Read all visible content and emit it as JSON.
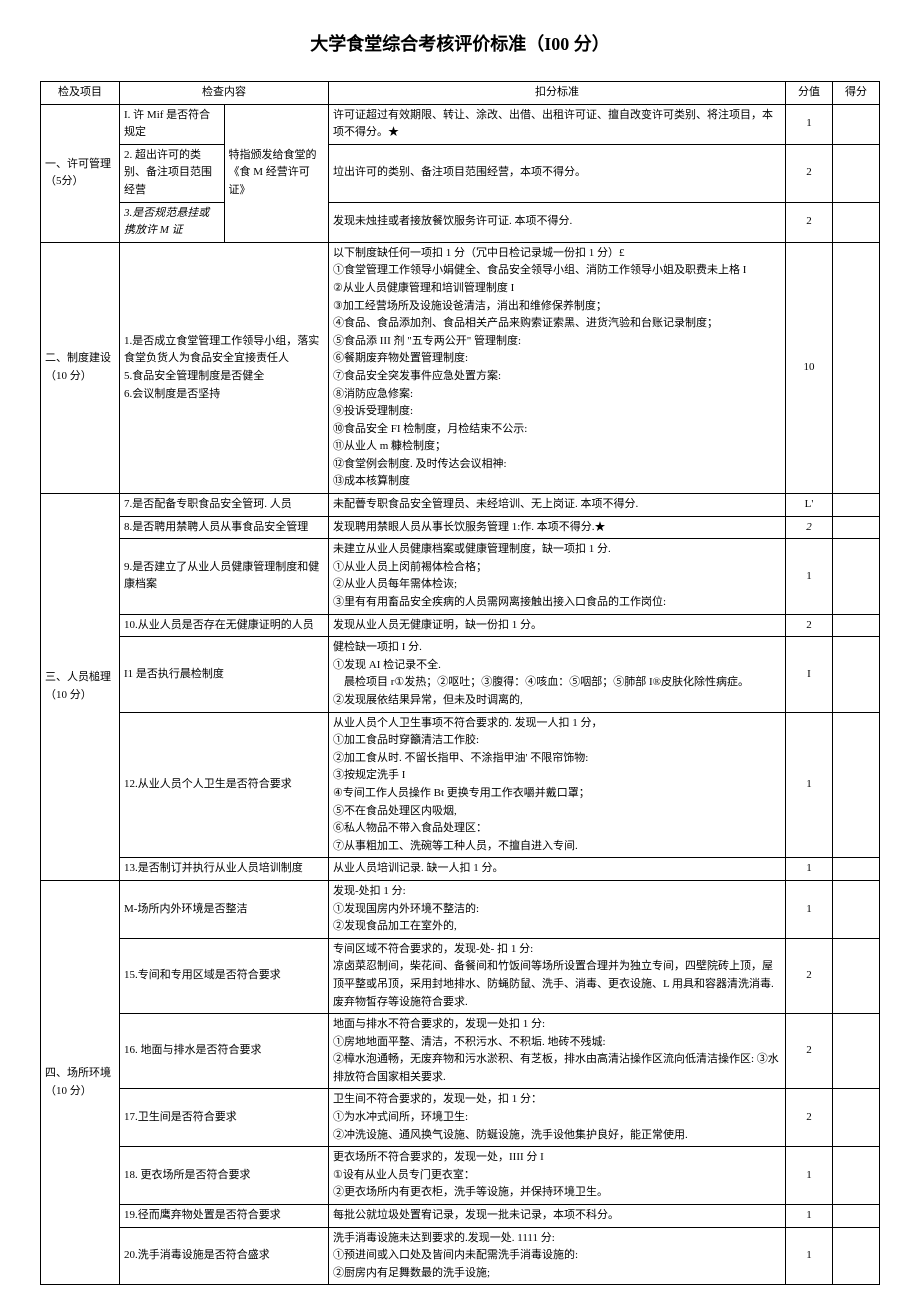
{
  "title": "大学食堂综合考核评价标准（I00 分）",
  "headers": {
    "project": "检及项目",
    "content": "检查内容",
    "criteria": "扣分标准",
    "score": "分值",
    "result": "得分"
  },
  "sections": [
    {
      "project": "一、许可管理（5分）",
      "rows": [
        {
          "content": "I. 许 Mif 是否符合规定",
          "special": "特指颁发给食堂的《食 M 经营许可证》",
          "criteria": "许可证超过有效期限、转让、涂改、出借、出租许可证、擅自改变许可类别、将注项目，本项不得分。★",
          "score": "1"
        },
        {
          "content": "2. 超出许可的类别、备注项目范围经营",
          "criteria": "垃出许可的类别、备注项目范围经营，本项不得分。",
          "score": "2"
        },
        {
          "content": "3.是否规范悬挂或携放许 M 证",
          "contentItalic": true,
          "criteria": "发现未烛挂或者接放餐饮服务许可证. 本项不得分.",
          "score": "2"
        }
      ]
    },
    {
      "project": "二、制度建设（10 分）",
      "rows": [
        {
          "content": "1.是否成立食堂管理工作领导小组，落实食堂负货人为食品安全宜接责任人\n5.食品安全管理制度是否健全\n6.会议制度是否坚持",
          "criteria": "以下制度缺任何一项扣 1 分（冗中日检记录城一份扣 1 分）£\n①食堂管理工作领导小娟健全、食品安全领导小组、消防工作领导小姐及职费未上格 I\n②从业人员健康管理和培训管理制度 I\n③加工经营场所及设施设爸清洁，消出和维修保养制度；\n④食品、食品添加剂、食品相关产品来购索证索黑、进货汽验和台账记录制度；\n⑤食品添 III 剂 \"五专两公开\" 管理制度:\n⑥餐期废弃物处置管理制度:\n⑦食品安全突发事件应急处置方案:\n⑧消防应急修案:\n⑨投诉受理制度:\n⑩食品安全 FI 检制度，月检结束不公示:\n⑪从业人 m 糠检制度；\n⑫食堂例会制度. 及时传达会议相神:\n⑬成本核算制度",
          "score": "10"
        }
      ]
    },
    {
      "project": "三、人员槌理（10 分）",
      "rows": [
        {
          "content": "7.是否配备专职食品安全管珂. 人员",
          "criteria": "未配瞢专职食品安全管理员、未经培训、无上岗证. 本项不得分.",
          "score": "L'"
        },
        {
          "content": "8.是否聘用禁聘人员从事食品安全管理",
          "criteria": "发现聘用禁眼人员从事长饮服务管理 1:作. 本项不得分.★",
          "score": "2",
          "scoreItalic": true
        },
        {
          "content": "9.是否建立了从业人员健康管理制度和健康档案",
          "criteria": "未建立从业人员健康档案或健康管理制度，缺一项扣 1 分.\n①从业人员上闵前裼体检合格；\n②从业人员每年需体检诙;\n③里有有用畜品安全疾病的人员需网离接触出接入口食品的工作岗位:",
          "score": "1"
        },
        {
          "content": "10.从业人员是否存在无健康证明的人员",
          "criteria": "发现从业人员无健康证明，缺一份扣 1 分。",
          "score": "2"
        },
        {
          "content": "I1 是否执行晨检制度",
          "criteria": "健检缺一项扣 I 分.\n①发现 AI 检记录不全.\n　晨检项目 r①发热；②呕吐；③腹得：④咳血：⑤咽部；⑤肺部 I®皮肤化除性病症。\n②发现展依结果异常，但未及时调离的,",
          "score": "I"
        },
        {
          "content": "12.从业人员个人卫生是否符合要求",
          "criteria": "从业人员个人卫生事项不符合要求的. 发现一人扣 1 分，\n①加工食品时穿籲清洁工作胶:\n②加工食从时. 不留长指甲、不涂指甲油' 不限帘饰物:\n③按规定洗手 I\n④专间工作人员操作 Bt 更换专用工作衣嚼并戴口罩；\n⑤不在食品处理区内吸烟,\n⑥私人物品不带入食品处理区：\n⑦从事粗加工、洗碗等工种人员，不擅自进入专间.",
          "score": "1"
        },
        {
          "content": "13.是否制订并执行从业人员培训制度",
          "criteria": "从业人员培训记录. 缺一人扣 1 分。",
          "score": "1"
        }
      ]
    },
    {
      "project": "四、场所环境（10 分）",
      "rows": [
        {
          "content": "M-场所内外环境是否整洁",
          "criteria": "发现-处扣 1 分:\n①发现国房内外环境不整洁的:\n②发现食品加工在室外的,",
          "score": "1"
        },
        {
          "content": "15.专间和专用区域是否符合要求",
          "criteria": "专间区域不符合要求的，发现-处- 扣 1 分:\n凉卤菜忍制间，柴花间、备餐间和竹饭间等场所设置合理并为独立专间，四壁院砖上顶，屋顶平整或吊顶，采用封地排水、防蝇防鼠、洗手、消毒、更衣设施、L 用具和容器清洗消毒. 废弃物皙存等设施符合要求.",
          "score": "2"
        },
        {
          "content": "16. 地面与排水是否符合要求",
          "criteria": "地面与排水不符合要求的，发现一处扣 1 分:\n①房地地面平整、清洁，不积污水、不积垢. 地砖不残城:\n②樟水泡通畅，无废弃物和污水淤积、有芝板，排水由高清沾操作区流向低清洁操作区: ③水排放符合国家相关要求.",
          "score": "2"
        },
        {
          "content": "17.卫生间是否符合要求",
          "criteria": "卫生间不符合要求的，发现一处，扣 1 分：\n①为水冲式间所，环境卫生:\n②冲洗设施、通风换气设施、防蜒设施，洗手设他集护良好，能正常使用.",
          "score": "2"
        },
        {
          "content": "18. 更衣场所是否符合要求",
          "criteria": "更衣场所不符合要求的，发现一处，IIII 分 I\n①设有从业人员专门更衣室：\n②更衣场所内有更衣柜，洗手等设施，并保持环境卫生。",
          "score": "1"
        },
        {
          "content": "19.径而鹰弃物处置是否符合要求",
          "criteria": "每批公就垃圾处置宥记录，发现一批未记录，本项不科分。",
          "score": "1"
        },
        {
          "content": "20.洗手消毒设施是否符合盛求",
          "criteria": "洗手消毒设施未达到要求的.发现一处. 1111 分:\n①预进间或入口处及皆间内未配需洗手消毒设施的:\n②厨房内有足舞数最的洗手设施;",
          "score": "1"
        }
      ]
    }
  ]
}
